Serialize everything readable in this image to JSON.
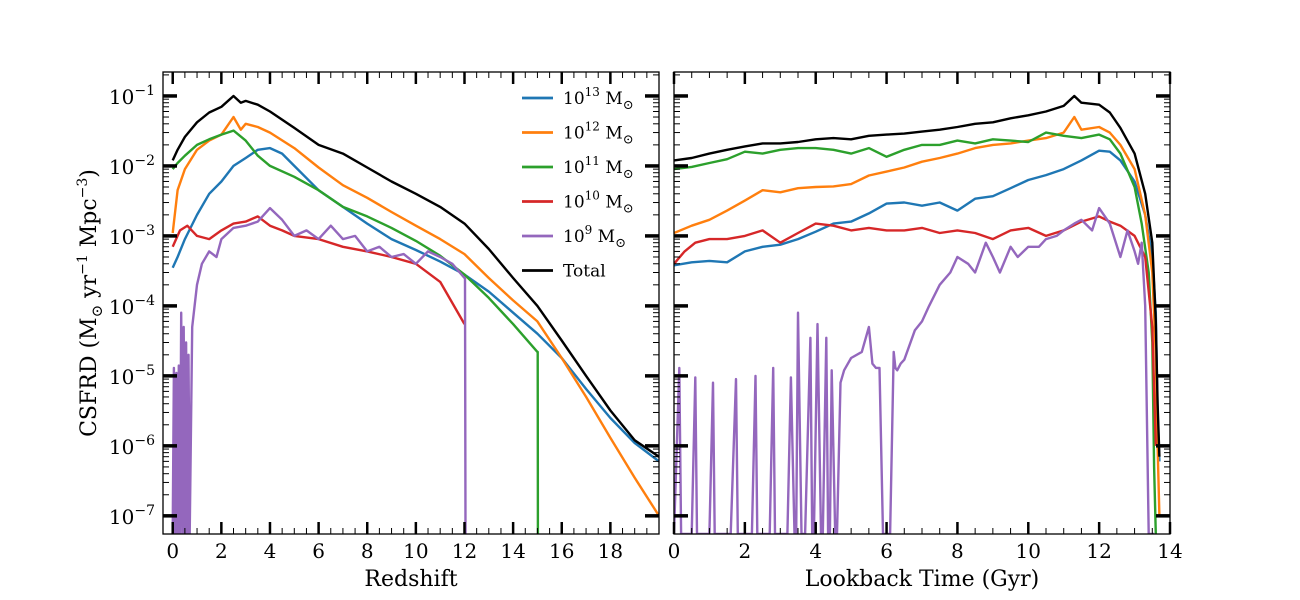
{
  "chart_data": [
    {
      "type": "line",
      "panel": "left",
      "xlabel": "Redshift",
      "ylabel_main": "CSFRD (M",
      "ylabel_yr": " yr",
      "ylabel_mpc": " Mpc",
      "ylabel_close": ")",
      "ylabel_exp1": "−1",
      "ylabel_exp3": "−3",
      "xlim": [
        -0.4,
        20
      ],
      "ylim": [
        5.5e-08,
        0.22
      ],
      "yscale": "log",
      "xticks": [
        0,
        2,
        4,
        6,
        8,
        10,
        12,
        14,
        16,
        18
      ],
      "xtick_labels": [
        "0",
        "2",
        "4",
        "6",
        "8",
        "10",
        "12",
        "14",
        "16",
        "18"
      ],
      "yticks": [
        1e-07,
        1e-06,
        1e-05,
        0.0001,
        0.001,
        0.01,
        0.1
      ],
      "ytick_base": "10",
      "ytick_exponents": [
        "−7",
        "−6",
        "−5",
        "−4",
        "−3",
        "−2",
        "−1"
      ],
      "legend_position": "top-right",
      "series": [
        {
          "name_base": "10",
          "name_exp": "13",
          "name_unit": " M",
          "color": "#1f77b4",
          "x": [
            0,
            0.2,
            0.5,
            1,
            1.5,
            2,
            2.5,
            3,
            3.5,
            4,
            4.5,
            5,
            6,
            7,
            8,
            9,
            10,
            11,
            12,
            13,
            14,
            15,
            16,
            17,
            18,
            19,
            20
          ],
          "y": [
            0.00035,
            0.0005,
            0.0009,
            0.002,
            0.004,
            0.006,
            0.01,
            0.013,
            0.017,
            0.018,
            0.015,
            0.01,
            0.0045,
            0.0026,
            0.0015,
            0.0009,
            0.00063,
            0.00043,
            0.00028,
            0.00016,
            8e-05,
            4e-05,
            1.8e-05,
            6.5e-06,
            2.5e-06,
            1.1e-06,
            6e-07
          ]
        },
        {
          "name_base": "10",
          "name_exp": "12",
          "name_unit": " M",
          "color": "#ff7f0e",
          "x": [
            0,
            0.2,
            0.5,
            1,
            1.5,
            2,
            2.5,
            2.8,
            3,
            3.5,
            4,
            5,
            6,
            7,
            8,
            9,
            10,
            11,
            12,
            13,
            14,
            15,
            16,
            17,
            18,
            19,
            20
          ],
          "y": [
            0.0011,
            0.0045,
            0.009,
            0.017,
            0.023,
            0.028,
            0.05,
            0.033,
            0.04,
            0.036,
            0.03,
            0.018,
            0.0095,
            0.0053,
            0.0035,
            0.0022,
            0.0014,
            0.0009,
            0.00055,
            0.00025,
            0.00012,
            6e-05,
            1.8e-05,
            5e-06,
            1.3e-06,
            3.5e-07,
            1e-07
          ]
        },
        {
          "name_base": "10",
          "name_exp": "11",
          "name_unit": " M",
          "color": "#2ca02c",
          "x": [
            0,
            0.2,
            0.5,
            1,
            1.5,
            2,
            2.5,
            3,
            3.5,
            4,
            5,
            6,
            7,
            8,
            9,
            10,
            11,
            12,
            13,
            14,
            15,
            15.01,
            15.02
          ],
          "y": [
            0.009,
            0.011,
            0.014,
            0.02,
            0.024,
            0.028,
            0.032,
            0.023,
            0.014,
            0.01,
            0.007,
            0.0045,
            0.0026,
            0.0019,
            0.0013,
            0.00085,
            0.00052,
            0.00028,
            0.00013,
            5.5e-05,
            2.2e-05,
            2.2e-05,
            5.5e-08
          ]
        },
        {
          "name_base": "10",
          "name_exp": "10",
          "name_unit": " M",
          "color": "#d62728",
          "x": [
            0,
            0.3,
            0.6,
            1,
            1.5,
            2,
            2.5,
            3,
            3.5,
            4,
            4.5,
            5,
            6,
            7,
            8,
            9,
            10,
            11,
            12
          ],
          "y": [
            0.0007,
            0.0012,
            0.0014,
            0.001,
            0.0009,
            0.0012,
            0.0015,
            0.0016,
            0.0019,
            0.0014,
            0.0012,
            0.001,
            0.0009,
            0.0007,
            0.0006,
            0.0005,
            0.0004,
            0.00022,
            5.5e-05
          ]
        },
        {
          "name_base": "10",
          "name_exp": "9",
          "name_unit": " M",
          "color": "#9467bd",
          "x": [
            0,
            0.05,
            0.1,
            0.15,
            0.2,
            0.25,
            0.3,
            0.35,
            0.4,
            0.45,
            0.5,
            0.55,
            0.6,
            0.65,
            0.7,
            0.8,
            1.0,
            1.2,
            1.5,
            1.8,
            2.0,
            2.5,
            3,
            3.5,
            4,
            4.5,
            5,
            5.5,
            6,
            6.5,
            7,
            7.5,
            8,
            8.5,
            9,
            9.5,
            10,
            10.5,
            11,
            11.5,
            12,
            12.02,
            12.04
          ],
          "y": [
            5.5e-08,
            1.3e-05,
            5.5e-08,
            1.1e-05,
            5.5e-08,
            1.4e-05,
            5.5e-08,
            8e-05,
            5.5e-08,
            5e-05,
            5.5e-08,
            3e-05,
            5.5e-08,
            2e-05,
            5.5e-08,
            5e-05,
            0.0002,
            0.0004,
            0.0006,
            0.0005,
            0.0009,
            0.0013,
            0.0014,
            0.0016,
            0.0025,
            0.0017,
            0.001,
            0.0012,
            0.0009,
            0.0014,
            0.0009,
            0.001,
            0.0006,
            0.0007,
            0.0005,
            0.00055,
            0.0004,
            0.0006,
            0.0005,
            0.0004,
            0.00025,
            0.00025,
            5.5e-08
          ]
        },
        {
          "name": "Total",
          "color": "#000000",
          "x": [
            0,
            0.2,
            0.5,
            1,
            1.5,
            2,
            2.5,
            2.8,
            3,
            3.5,
            4,
            5,
            6,
            7,
            8,
            9,
            10,
            11,
            12,
            13,
            14,
            15,
            16,
            17,
            18,
            19,
            20
          ],
          "y": [
            0.012,
            0.017,
            0.026,
            0.042,
            0.058,
            0.07,
            0.1,
            0.08,
            0.085,
            0.075,
            0.06,
            0.035,
            0.02,
            0.015,
            0.0095,
            0.006,
            0.004,
            0.0026,
            0.0015,
            0.00065,
            0.00025,
            0.0001,
            3.2e-05,
            1e-05,
            3.2e-06,
            1.2e-06,
            7e-07
          ]
        }
      ]
    },
    {
      "type": "line",
      "panel": "right",
      "xlabel": "Lookback Time (Gyr)",
      "xlim": [
        0,
        14.0
      ],
      "ylim": [
        5.5e-08,
        0.22
      ],
      "yscale": "log",
      "xticks": [
        0,
        2,
        4,
        6,
        8,
        10,
        12,
        14
      ],
      "xtick_labels": [
        "0",
        "2",
        "4",
        "6",
        "8",
        "10",
        "12",
        "14"
      ],
      "series": [
        {
          "name": "10^13",
          "color": "#1f77b4",
          "x": [
            0,
            0.5,
            1,
            1.5,
            2,
            2.5,
            3,
            3.5,
            4,
            4.5,
            5,
            5.5,
            6,
            6.5,
            7,
            7.5,
            8,
            8.5,
            9,
            9.5,
            10,
            10.5,
            11,
            11.5,
            12,
            12.3,
            12.6,
            13.0,
            13.3,
            13.5,
            13.6,
            13.65,
            13.7
          ],
          "y": [
            0.00038,
            0.00042,
            0.00044,
            0.00042,
            0.0006,
            0.0007,
            0.00075,
            0.0009,
            0.00115,
            0.0015,
            0.0016,
            0.0021,
            0.0029,
            0.003,
            0.0027,
            0.003,
            0.0023,
            0.0034,
            0.0037,
            0.0048,
            0.0063,
            0.0074,
            0.009,
            0.012,
            0.0165,
            0.016,
            0.012,
            0.006,
            0.002,
            0.0005,
            8e-05,
            3e-06,
            6e-07
          ]
        },
        {
          "name": "10^12",
          "color": "#ff7f0e",
          "x": [
            0,
            0.5,
            1,
            1.5,
            2,
            2.5,
            3,
            3.5,
            4,
            4.5,
            5,
            5.5,
            6,
            6.5,
            7,
            7.5,
            8,
            8.5,
            9,
            9.5,
            10,
            10.5,
            11,
            11.3,
            11.5,
            12,
            12.3,
            12.6,
            13.0,
            13.3,
            13.5,
            13.6,
            13.65,
            13.7
          ],
          "y": [
            0.0011,
            0.0014,
            0.0017,
            0.0023,
            0.0032,
            0.0045,
            0.0042,
            0.0048,
            0.005,
            0.0051,
            0.0055,
            0.0073,
            0.0083,
            0.0095,
            0.0115,
            0.013,
            0.015,
            0.018,
            0.02,
            0.021,
            0.023,
            0.025,
            0.03,
            0.05,
            0.033,
            0.036,
            0.03,
            0.02,
            0.009,
            0.002,
            0.0003,
            2e-05,
            1e-06,
            1e-07
          ]
        },
        {
          "name": "10^11",
          "color": "#2ca02c",
          "x": [
            0,
            0.5,
            1,
            1.5,
            2,
            2.5,
            3,
            3.5,
            4,
            4.5,
            5,
            5.5,
            6,
            6.5,
            7,
            7.5,
            8,
            8.5,
            9,
            9.5,
            10,
            10.5,
            11,
            11.5,
            12,
            12.3,
            12.6,
            13.0,
            13.2,
            13.4,
            13.5,
            13.55,
            13.6
          ],
          "y": [
            0.009,
            0.0097,
            0.011,
            0.0125,
            0.016,
            0.015,
            0.017,
            0.018,
            0.018,
            0.017,
            0.015,
            0.018,
            0.0135,
            0.017,
            0.02,
            0.02,
            0.023,
            0.021,
            0.024,
            0.023,
            0.022,
            0.03,
            0.027,
            0.025,
            0.028,
            0.024,
            0.015,
            0.005,
            0.0015,
            0.0003,
            3e-05,
            5e-07,
            5.5e-08
          ]
        },
        {
          "name": "10^10",
          "color": "#d62728",
          "x": [
            0,
            0.3,
            0.6,
            1,
            1.5,
            2,
            2.5,
            3,
            3.5,
            4,
            4.5,
            5,
            5.5,
            6,
            6.5,
            7,
            7.5,
            8,
            8.5,
            9,
            9.5,
            10,
            10.5,
            11,
            11.5,
            12,
            12.3,
            12.6,
            13.0,
            13.3,
            13.5,
            13.6
          ],
          "y": [
            0.0004,
            0.0006,
            0.0008,
            0.0009,
            0.0009,
            0.001,
            0.0012,
            0.0008,
            0.0011,
            0.0015,
            0.0014,
            0.0012,
            0.0013,
            0.0012,
            0.0012,
            0.0013,
            0.0011,
            0.0012,
            0.0011,
            0.0009,
            0.0012,
            0.0013,
            0.001,
            0.0012,
            0.0016,
            0.0019,
            0.0016,
            0.0014,
            0.001,
            0.0005,
            5e-05,
            1e-06
          ]
        },
        {
          "name": "10^9",
          "color": "#9467bd",
          "x": [
            0,
            0.15,
            0.2,
            0.25,
            0.5,
            0.6,
            0.65,
            0.7,
            1.0,
            1.1,
            1.15,
            1.2,
            1.6,
            1.75,
            1.8,
            1.85,
            2.2,
            2.3,
            2.35,
            2.4,
            2.7,
            2.8,
            2.85,
            3.0,
            3.2,
            3.3,
            3.4,
            3.45,
            3.5,
            3.6,
            3.7,
            3.85,
            3.9,
            3.95,
            4.05,
            4.15,
            4.2,
            4.3,
            4.35,
            4.4,
            4.45,
            4.55,
            4.6,
            4.7,
            4.8,
            5.0,
            5.3,
            5.5,
            5.6,
            5.7,
            5.8,
            5.9,
            6.0,
            6.1,
            6.2,
            6.25,
            6.3,
            6.4,
            6.5,
            6.8,
            7.0,
            7.2,
            7.5,
            7.8,
            8.0,
            8.3,
            8.5,
            8.8,
            9.0,
            9.2,
            9.5,
            9.7,
            10.0,
            10.3,
            10.5,
            10.8,
            11.0,
            11.3,
            11.5,
            11.8,
            12.0,
            12.3,
            12.6,
            12.8,
            13.0,
            13.1,
            13.2,
            13.3,
            13.4,
            13.5,
            13.55
          ],
          "y": [
            5.5e-08,
            1.3e-05,
            5.5e-08,
            5.5e-08,
            5.5e-08,
            9.5e-06,
            5.5e-08,
            5.5e-08,
            5.5e-08,
            8e-06,
            5.5e-08,
            5.5e-08,
            5.5e-08,
            9e-06,
            5.5e-08,
            5.5e-08,
            5.5e-08,
            1e-05,
            5.5e-08,
            5.5e-08,
            5.5e-08,
            1.3e-05,
            5.5e-08,
            5.5e-08,
            5.5e-08,
            9.5e-06,
            5.5e-08,
            5.5e-08,
            8e-05,
            5.5e-08,
            5.5e-08,
            3.5e-05,
            5.5e-08,
            5.5e-08,
            5.5e-05,
            5.5e-08,
            5.5e-08,
            3.5e-05,
            5.5e-08,
            5.5e-08,
            1.2e-05,
            5.5e-08,
            5.5e-08,
            8e-06,
            1.2e-05,
            1.8e-05,
            2.2e-05,
            5e-05,
            1.5e-05,
            1.3e-05,
            1.3e-05,
            5.5e-08,
            5.5e-08,
            5.5e-08,
            2.2e-05,
            1.3e-05,
            1.2e-05,
            1.5e-05,
            1.7e-05,
            4.5e-05,
            6e-05,
            0.0001,
            0.0002,
            0.0003,
            0.0005,
            0.0004,
            0.0003,
            0.0008,
            0.0005,
            0.0003,
            0.0007,
            0.0005,
            0.0007,
            0.0007,
            0.0009,
            0.001,
            0.0012,
            0.0015,
            0.0017,
            0.0012,
            0.0025,
            0.0015,
            0.0005,
            0.0012,
            0.0006,
            0.0004,
            0.0008,
            0.0001,
            5.5e-08,
            5.5e-08,
            5.5e-08
          ]
        },
        {
          "name": "Total",
          "color": "#000000",
          "x": [
            0,
            0.5,
            1,
            1.5,
            2,
            2.5,
            3,
            3.5,
            4,
            4.5,
            5,
            5.5,
            6,
            6.5,
            7,
            7.5,
            8,
            8.5,
            9,
            9.5,
            10,
            10.5,
            11,
            11.3,
            11.5,
            12,
            12.3,
            12.6,
            13.0,
            13.3,
            13.5,
            13.6,
            13.65,
            13.7
          ],
          "y": [
            0.012,
            0.013,
            0.015,
            0.017,
            0.019,
            0.021,
            0.021,
            0.022,
            0.024,
            0.025,
            0.024,
            0.027,
            0.028,
            0.029,
            0.031,
            0.033,
            0.036,
            0.04,
            0.042,
            0.048,
            0.053,
            0.06,
            0.072,
            0.1,
            0.08,
            0.075,
            0.058,
            0.035,
            0.015,
            0.004,
            0.0008,
            6e-05,
            4e-06,
            7e-07
          ]
        }
      ]
    }
  ]
}
